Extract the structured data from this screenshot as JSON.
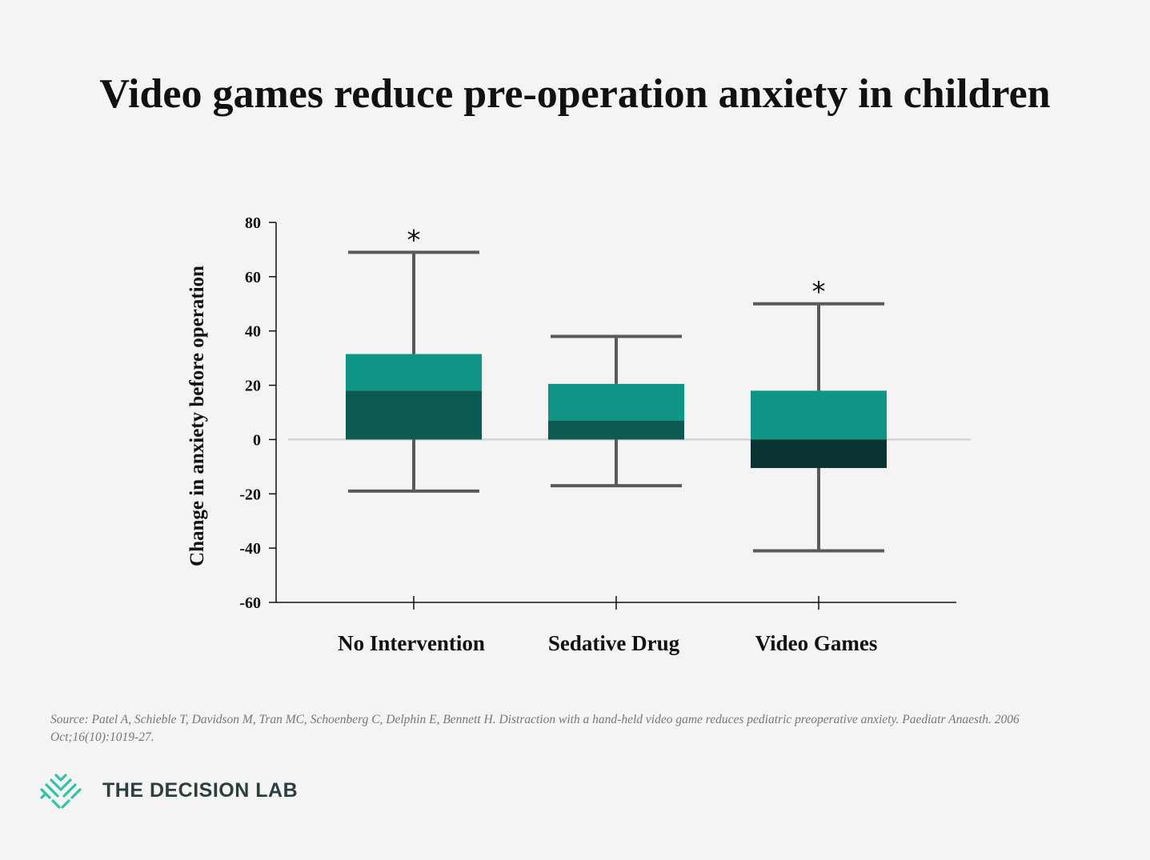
{
  "title": "Video games reduce pre-operation anxiety in children",
  "chart_data": {
    "type": "box",
    "title": "Video games reduce pre-operation anxiety in children",
    "ylabel": "Change in anxiety before operation",
    "xlabel": "",
    "ylim": [
      -60,
      80
    ],
    "yticks": [
      "80",
      "60",
      "40",
      "20",
      "0",
      "-20",
      "-40",
      "-60"
    ],
    "ytick_values": [
      80,
      60,
      40,
      20,
      0,
      -20,
      -40,
      -60
    ],
    "categories": [
      "No Intervention",
      "Sedative Drug",
      "Video Games"
    ],
    "boxes": [
      {
        "category": "No Intervention",
        "whisker_low": -19,
        "q1": 0,
        "median": 18,
        "q3": 31.5,
        "whisker_high": 69,
        "significant": true,
        "lower_color": "#0b5b53"
      },
      {
        "category": "Sedative Drug",
        "whisker_low": -17,
        "q1": 0,
        "median": 7,
        "q3": 20.5,
        "whisker_high": 38,
        "significant": false,
        "lower_color": "#0b5b53"
      },
      {
        "category": "Video Games",
        "whisker_low": -41,
        "q1": -10.5,
        "median": 0,
        "q3": 18,
        "whisker_high": 50,
        "significant": true,
        "lower_color": "#0a3432"
      }
    ],
    "significance_marker": "*",
    "upper_color": "#0e9585",
    "whisker_color": "#5a5a5a",
    "zero_line_color": "#d4d4d4",
    "grid": false
  },
  "source": "Source: Patel A, Schieble T, Davidson M, Tran MC, Schoenberg C, Delphin E, Bennett H. Distraction with a hand-held video game reduces pediatric preoperative anxiety. Paediatr Anaesth. 2006 Oct;16(10):1019-27.",
  "logo": {
    "text": "THE DECISION LAB",
    "color": "#2ec4a6"
  }
}
